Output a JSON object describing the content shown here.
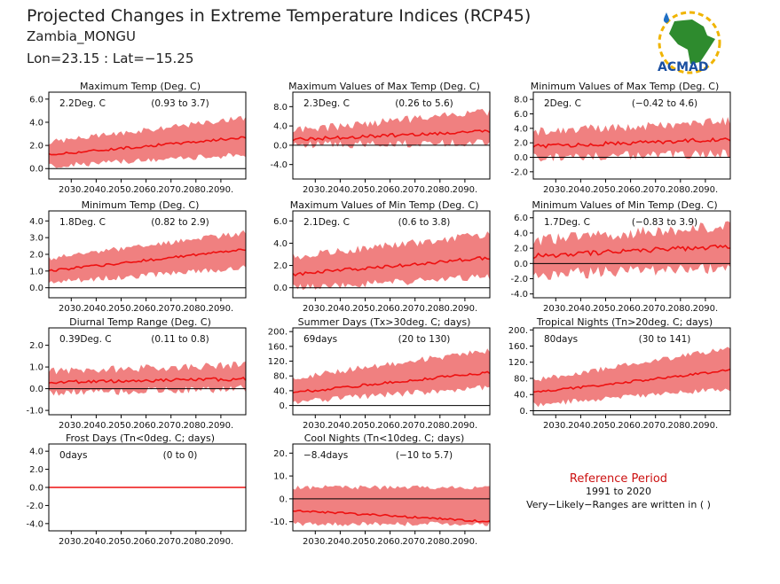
{
  "header": {
    "title": "Projected Changes in Extreme Temperature Indices (RCP45)",
    "location": "Zambia_MONGU",
    "coords": "Lon=23.15 : Lat=−15.25"
  },
  "logo": {
    "text": "ACMAD"
  },
  "reference": {
    "title": "Reference Period",
    "period": "1991 to 2020",
    "note": "Very−Likely−Ranges are written in ( )"
  },
  "colors": {
    "band": "#f08080",
    "line": "#ee1111",
    "zero": "#000000",
    "title_red": "#cc1111"
  },
  "chart_data": [
    {
      "type": "area",
      "title": "Maximum Temp (Deg. C)",
      "value_text": "2.2Deg. C",
      "range_text": "(0.93 to 3.7)",
      "x_start": 2021,
      "x_end": 2100,
      "xticks": [
        "2030.",
        "2040.",
        "2050.",
        "2060.",
        "2070.",
        "2080.",
        "2090."
      ],
      "ylim": [
        -0.9,
        6.6
      ],
      "yticks": [
        "0.0",
        "2.0",
        "4.0",
        "6.0"
      ],
      "median": {
        "start": 1.2,
        "end": 2.7
      },
      "low": {
        "start": 0.2,
        "end": 1.2
      },
      "high": {
        "start": 2.3,
        "end": 4.4
      },
      "noise": 0.35
    },
    {
      "type": "area",
      "title": "Maximum Values of Max Temp (Deg. C)",
      "value_text": "2.3Deg. C",
      "range_text": "(0.26 to 5.6)",
      "x_start": 2021,
      "x_end": 2100,
      "xticks": [
        "2030.",
        "2040.",
        "2050.",
        "2060.",
        "2070.",
        "2080.",
        "2090."
      ],
      "ylim": [
        -7,
        11
      ],
      "yticks": [
        "-4.0",
        "0.0",
        "4.0",
        "8.0"
      ],
      "median": {
        "start": 1.2,
        "end": 2.9
      },
      "low": {
        "start": 0,
        "end": 0.6
      },
      "high": {
        "start": 3,
        "end": 7
      },
      "noise": 1.2
    },
    {
      "type": "area",
      "title": "Minimum Values of Max Temp (Deg. C)",
      "value_text": "2Deg. C",
      "range_text": "(−0.42 to 4.6)",
      "x_start": 2021,
      "x_end": 2100,
      "xticks": [
        "2030.",
        "2040.",
        "2050.",
        "2060.",
        "2070.",
        "2080.",
        "2090."
      ],
      "ylim": [
        -3,
        9
      ],
      "yticks": [
        "-2.0",
        "0.0",
        "2.0",
        "4.0",
        "6.0",
        "8.0"
      ],
      "median": {
        "start": 1.5,
        "end": 2.5
      },
      "low": {
        "start": 0,
        "end": 0.5
      },
      "high": {
        "start": 3.5,
        "end": 5
      },
      "noise": 0.9
    },
    {
      "type": "area",
      "title": "Minimum Temp (Deg. C)",
      "value_text": "1.8Deg. C",
      "range_text": "(0.82 to 2.9)",
      "x_start": 2021,
      "x_end": 2100,
      "xticks": [
        "2030.",
        "2040.",
        "2050.",
        "2060.",
        "2070.",
        "2080.",
        "2090."
      ],
      "ylim": [
        -0.6,
        4.6
      ],
      "yticks": [
        "0.0",
        "1.0",
        "2.0",
        "3.0",
        "4.0"
      ],
      "median": {
        "start": 1.0,
        "end": 2.3
      },
      "low": {
        "start": 0.3,
        "end": 1.2
      },
      "high": {
        "start": 1.8,
        "end": 3.3
      },
      "noise": 0.25
    },
    {
      "type": "area",
      "title": "Maximum Values of Min Temp (Deg. C)",
      "value_text": "2.1Deg. C",
      "range_text": "(0.6 to 3.8)",
      "x_start": 2021,
      "x_end": 2100,
      "xticks": [
        "2030.",
        "2040.",
        "2050.",
        "2060.",
        "2070.",
        "2080.",
        "2090."
      ],
      "ylim": [
        -0.9,
        6.9
      ],
      "yticks": [
        "0.0",
        "2.0",
        "4.0",
        "6.0"
      ],
      "median": {
        "start": 1.2,
        "end": 2.7
      },
      "low": {
        "start": 0,
        "end": 1
      },
      "high": {
        "start": 2.8,
        "end": 4.8
      },
      "noise": 0.5
    },
    {
      "type": "area",
      "title": "Minimum Values of Min Temp (Deg. C)",
      "value_text": "1.7Deg. C",
      "range_text": "(−0.83 to 3.9)",
      "x_start": 2021,
      "x_end": 2100,
      "xticks": [
        "2030.",
        "2040.",
        "2050.",
        "2060.",
        "2070.",
        "2080.",
        "2090."
      ],
      "ylim": [
        -4.5,
        6.9
      ],
      "yticks": [
        "-4.0",
        "-2.0",
        "0.0",
        "2.0",
        "4.0",
        "6.0"
      ],
      "median": {
        "start": 1.0,
        "end": 2.3
      },
      "low": {
        "start": -1.5,
        "end": -0.5
      },
      "high": {
        "start": 3,
        "end": 5
      },
      "noise": 1.1
    },
    {
      "type": "area",
      "title": "Diurnal Temp Range (Deg. C)",
      "value_text": "0.39Deg. C",
      "range_text": "(0.11 to 0.8)",
      "x_start": 2021,
      "x_end": 2100,
      "xticks": [
        "2030.",
        "2040.",
        "2050.",
        "2060.",
        "2070.",
        "2080.",
        "2090."
      ],
      "ylim": [
        -1.2,
        2.8
      ],
      "yticks": [
        "-1.0",
        "0.0",
        "1.0",
        "2.0"
      ],
      "median": {
        "start": 0.3,
        "end": 0.45
      },
      "low": {
        "start": -0.2,
        "end": 0
      },
      "high": {
        "start": 0.8,
        "end": 1.1
      },
      "noise": 0.25
    },
    {
      "type": "area",
      "title": "Summer Days (Tx>30deg. C; days)",
      "value_text": "69days",
      "range_text": "(20 to 130)",
      "x_start": 2021,
      "x_end": 2100,
      "xticks": [
        "2030.",
        "2040.",
        "2050.",
        "2060.",
        "2070.",
        "2080.",
        "2090."
      ],
      "ylim": [
        -25,
        210
      ],
      "yticks": [
        "0.",
        "40.",
        "80.",
        "120.",
        "160.",
        "200."
      ],
      "median": {
        "start": 35,
        "end": 90
      },
      "low": {
        "start": 10,
        "end": 50
      },
      "high": {
        "start": 75,
        "end": 150
      },
      "noise": 12
    },
    {
      "type": "area",
      "title": "Tropical Nights (Tn>20deg. C; days)",
      "value_text": "80days",
      "range_text": "(30 to 141)",
      "x_start": 2021,
      "x_end": 2100,
      "xticks": [
        "2030.",
        "2040.",
        "2050.",
        "2060.",
        "2070.",
        "2080.",
        "2090."
      ],
      "ylim": [
        -10,
        205
      ],
      "yticks": [
        "0.",
        "40.",
        "80.",
        "120.",
        "160.",
        "200."
      ],
      "median": {
        "start": 45,
        "end": 100
      },
      "low": {
        "start": 15,
        "end": 55
      },
      "high": {
        "start": 75,
        "end": 155
      },
      "noise": 10
    },
    {
      "type": "area",
      "title": "Frost Days (Tn<0deg. C; days)",
      "value_text": "0days",
      "range_text": "(0 to 0)",
      "x_start": 2021,
      "x_end": 2100,
      "xticks": [
        "2030.",
        "2040.",
        "2050.",
        "2060.",
        "2070.",
        "2080.",
        "2090."
      ],
      "ylim": [
        -4.8,
        4.8
      ],
      "yticks": [
        "-4.0",
        "-2.0",
        "0.0",
        "2.0",
        "4.0"
      ],
      "median": {
        "start": 0,
        "end": 0
      },
      "low": {
        "start": 0,
        "end": 0
      },
      "high": {
        "start": 0,
        "end": 0
      },
      "noise": 0
    },
    {
      "type": "area",
      "title": "Cool Nights (Tn<10deg. C; days)",
      "value_text": "−8.4days",
      "range_text": "(−10 to 5.7)",
      "x_start": 2021,
      "x_end": 2100,
      "xticks": [
        "2030.",
        "2040.",
        "2050.",
        "2060.",
        "2070.",
        "2080.",
        "2090."
      ],
      "ylim": [
        -14,
        24
      ],
      "yticks": [
        "-10.",
        "0.",
        "10.",
        "20."
      ],
      "median": {
        "start": -5,
        "end": -10
      },
      "low": {
        "start": -11,
        "end": -11
      },
      "high": {
        "start": 5,
        "end": 5
      },
      "noise": 1.5
    }
  ]
}
